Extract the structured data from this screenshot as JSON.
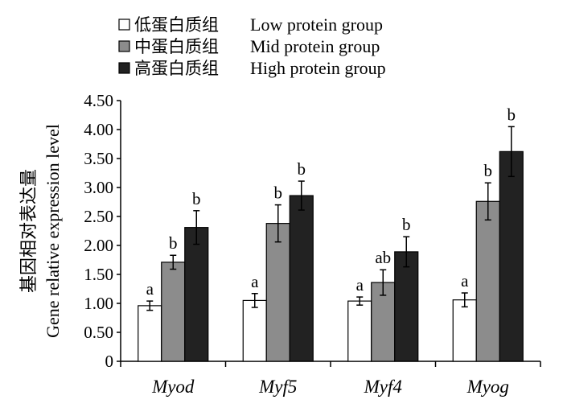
{
  "chart_data": {
    "type": "bar",
    "categories": [
      "Myod",
      "Myf5",
      "Myf4",
      "Myog"
    ],
    "series": [
      {
        "name_zh": "低蛋白质组",
        "name": "Low protein group",
        "color": "#ffffff",
        "values": [
          0.96,
          1.05,
          1.04,
          1.06
        ],
        "errors": [
          0.08,
          0.12,
          0.07,
          0.12
        ],
        "sig": [
          "a",
          "a",
          "a",
          "a"
        ]
      },
      {
        "name_zh": "中蛋白质组",
        "name": "Mid protein group",
        "color": "#8c8c8c",
        "values": [
          1.71,
          2.38,
          1.36,
          2.76
        ],
        "errors": [
          0.12,
          0.32,
          0.22,
          0.32
        ],
        "sig": [
          "b",
          "b",
          "ab",
          "b"
        ]
      },
      {
        "name_zh": "高蛋白质组",
        "name": "High protein group",
        "color": "#222222",
        "values": [
          2.31,
          2.86,
          1.89,
          3.62
        ],
        "errors": [
          0.29,
          0.25,
          0.26,
          0.43
        ],
        "sig": [
          "b",
          "b",
          "b",
          "b"
        ]
      }
    ],
    "ylabel_zh": "基因相对表达量",
    "ylabel": "Gene relative expression level",
    "ylim": [
      0,
      4.5
    ],
    "yticks": [
      "0",
      "0.50",
      "1.00",
      "1.50",
      "2.00",
      "2.50",
      "3.00",
      "3.50",
      "4.00",
      "4.50"
    ],
    "grid": false,
    "legend_position": "top-left"
  }
}
